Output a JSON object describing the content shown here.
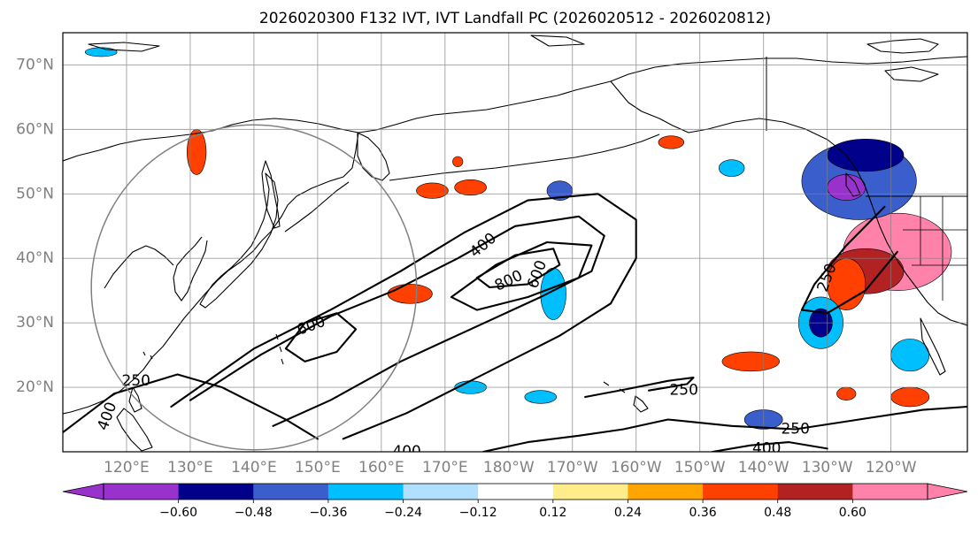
{
  "chart_data": {
    "type": "map",
    "title": "2026020300 F132 IVT, IVT Landfall PC (2026020512 - 2026020812)",
    "lon_range": [
      110,
      252
    ],
    "lat_range": [
      10,
      75
    ],
    "lat_ticks": [
      {
        "value": 20,
        "label": "20°N"
      },
      {
        "value": 30,
        "label": "30°N"
      },
      {
        "value": 40,
        "label": "40°N"
      },
      {
        "value": 50,
        "label": "50°N"
      },
      {
        "value": 60,
        "label": "60°N"
      },
      {
        "value": 70,
        "label": "70°N"
      }
    ],
    "lon_ticks": [
      {
        "value": 120,
        "label": "120°E"
      },
      {
        "value": 130,
        "label": "130°E"
      },
      {
        "value": 140,
        "label": "140°E"
      },
      {
        "value": 150,
        "label": "150°E"
      },
      {
        "value": 160,
        "label": "160°E"
      },
      {
        "value": 170,
        "label": "170°E"
      },
      {
        "value": 180,
        "label": "180°W"
      },
      {
        "value": 190,
        "label": "170°W"
      },
      {
        "value": 200,
        "label": "160°W"
      },
      {
        "value": 210,
        "label": "150°W"
      },
      {
        "value": 220,
        "label": "140°W"
      },
      {
        "value": 230,
        "label": "130°W"
      },
      {
        "value": 240,
        "label": "120°W"
      }
    ],
    "colorbar": {
      "levels": [
        -0.72,
        -0.6,
        -0.48,
        -0.36,
        -0.24,
        -0.12,
        0.12,
        0.24,
        0.36,
        0.48,
        0.6,
        0.72
      ],
      "tick_labels": [
        "−0.60",
        "−0.48",
        "−0.36",
        "−0.24",
        "−0.12",
        "0.12",
        "0.24",
        "0.36",
        "0.48",
        "0.60"
      ],
      "colors": [
        "#9932cc",
        "#00008b",
        "#3a5fcd",
        "#00bfff",
        "#b0e0fe",
        "#ffffff",
        "#ffec8b",
        "#ffa500",
        "#ff4000",
        "#b22222",
        "#ff82ab"
      ],
      "under_color": "#9932cc",
      "over_color": "#ff82ab"
    },
    "ivt_contours": {
      "levels": [
        250,
        400,
        600,
        800
      ],
      "labels": [
        {
          "text": "400",
          "lon": 176,
          "lat": 42,
          "angle": -40
        },
        {
          "text": "800",
          "lon": 180,
          "lat": 36.5,
          "angle": -25
        },
        {
          "text": "600",
          "lon": 184.5,
          "lat": 37.5,
          "angle": -70
        },
        {
          "text": "600",
          "lon": 149,
          "lat": 29.5,
          "angle": -20
        },
        {
          "text": "250",
          "lon": 121.5,
          "lat": 21,
          "angle": 0
        },
        {
          "text": "400",
          "lon": 117,
          "lat": 15.5,
          "angle": -70
        },
        {
          "text": "250",
          "lon": 207.5,
          "lat": 19.5,
          "angle": 0
        },
        {
          "text": "250",
          "lon": 230,
          "lat": 37,
          "angle": -70
        },
        {
          "text": "250",
          "lon": 225,
          "lat": 13.5,
          "angle": 0
        },
        {
          "text": "400",
          "lon": 220.5,
          "lat": 10.5,
          "angle": 0
        },
        {
          "text": "400",
          "lon": 164,
          "lat": 10,
          "angle": 0
        }
      ],
      "lines": [
        {
          "value": 250,
          "points": [
            [
              127,
              17
            ],
            [
              140,
              26
            ],
            [
              152,
              32
            ],
            [
              163,
              38
            ],
            [
              173,
              44
            ],
            [
              183,
              49
            ],
            [
              194,
              50
            ],
            [
              200,
              46
            ],
            [
              200,
              40
            ],
            [
              196,
              33
            ],
            [
              188,
              28
            ],
            [
              176,
              22
            ],
            [
              164,
              16
            ],
            [
              154,
              12
            ]
          ]
        },
        {
          "value": 400,
          "points": [
            [
              130,
              18
            ],
            [
              141,
              25
            ],
            [
              152,
              31
            ],
            [
              162,
              35
            ],
            [
              172,
              40
            ],
            [
              181,
              45
            ],
            [
              191,
              46.5
            ],
            [
              195,
              43.5
            ],
            [
              193,
              38
            ],
            [
              185,
              34
            ],
            [
              174,
              29
            ],
            [
              163,
              24
            ],
            [
              152,
              18
            ],
            [
              143,
              14
            ]
          ]
        },
        {
          "value": 600,
          "points": [
            [
              145,
              26
            ],
            [
              148,
              30
            ],
            [
              153,
              31.5
            ],
            [
              156,
              29
            ],
            [
              153,
              25.5
            ],
            [
              148,
              24
            ],
            [
              145,
              26
            ]
          ]
        },
        {
          "value": 600,
          "points": [
            [
              171,
              34
            ],
            [
              178,
              39
            ],
            [
              186,
              42.5
            ],
            [
              193,
              42
            ],
            [
              191,
              37
            ],
            [
              183,
              34
            ],
            [
              175,
              32
            ],
            [
              171,
              34
            ]
          ]
        },
        {
          "value": 800,
          "points": [
            [
              175,
              37
            ],
            [
              181,
              40.5
            ],
            [
              187,
              41.5
            ],
            [
              188,
              39
            ],
            [
              183,
              36
            ],
            [
              177,
              35.5
            ],
            [
              175,
              37
            ]
          ]
        },
        {
          "value": 250,
          "points": [
            [
              110,
              13
            ],
            [
              118,
              19
            ],
            [
              128,
              22
            ],
            [
              135,
              20
            ],
            [
              145,
              15
            ],
            [
              150,
              12
            ]
          ]
        },
        {
          "value": 250,
          "points": [
            [
              239,
              48
            ],
            [
              233,
              42
            ],
            [
              228,
              36
            ],
            [
              226,
              32
            ],
            [
              230,
              31.5
            ],
            [
              236,
              35
            ],
            [
              241,
              41
            ]
          ]
        },
        {
          "value": 250,
          "points": [
            [
              192,
              18.5
            ],
            [
              199,
              19.8
            ],
            [
              205,
              21
            ],
            [
              209,
              21.5
            ],
            [
              208,
              20.5
            ],
            [
              202,
              19.5
            ]
          ]
        },
        {
          "value": 250,
          "points": [
            [
              176,
              10
            ],
            [
              183,
              11.5
            ],
            [
              191,
              12.5
            ],
            [
              198,
              13.5
            ],
            [
              205,
              15
            ],
            [
              215,
              14
            ],
            [
              225,
              13.5
            ],
            [
              235,
              15
            ],
            [
              245,
              16.5
            ],
            [
              252,
              17
            ]
          ]
        },
        {
          "value": 400,
          "points": [
            [
              212,
              10
            ],
            [
              218,
              11
            ],
            [
              224,
              11.5
            ],
            [
              230,
              10.5
            ]
          ]
        }
      ]
    },
    "landfall_circle": {
      "center_lon": 140,
      "center_lat": 35.5,
      "radius_lat": 25.2
    },
    "pc_patches": [
      {
        "color": "#ff82ab",
        "lon": 241,
        "lat": 41,
        "rx": 8.5,
        "ry": 6
      },
      {
        "color": "#b22222",
        "lon": 236,
        "lat": 38,
        "rx": 6,
        "ry": 3.5
      },
      {
        "color": "#ff4000",
        "lon": 233,
        "lat": 36,
        "rx": 3,
        "ry": 4
      },
      {
        "color": "#3a5fcd",
        "lon": 235,
        "lat": 52,
        "rx": 9,
        "ry": 6
      },
      {
        "color": "#00008b",
        "lon": 236,
        "lat": 56,
        "rx": 6,
        "ry": 2.5
      },
      {
        "color": "#9932cc",
        "lon": 233,
        "lat": 51,
        "rx": 3,
        "ry": 2
      },
      {
        "color": "#00bfff",
        "lon": 229,
        "lat": 30,
        "rx": 3.5,
        "ry": 4
      },
      {
        "color": "#00008b",
        "lon": 229,
        "lat": 30,
        "rx": 1.8,
        "ry": 2.2
      },
      {
        "color": "#00bfff",
        "lon": 243,
        "lat": 25,
        "rx": 3,
        "ry": 2.5
      },
      {
        "color": "#3a5fcd",
        "lon": 220,
        "lat": 15,
        "rx": 3,
        "ry": 1.5
      },
      {
        "color": "#ff4000",
        "lon": 218,
        "lat": 24,
        "rx": 4.5,
        "ry": 1.5
      },
      {
        "color": "#ff4000",
        "lon": 243,
        "lat": 18.5,
        "rx": 3,
        "ry": 1.5
      },
      {
        "color": "#ff4000",
        "lon": 233,
        "lat": 19,
        "rx": 1.5,
        "ry": 1
      },
      {
        "color": "#ff4000",
        "lon": 164.5,
        "lat": 34.5,
        "rx": 3.5,
        "ry": 1.5
      },
      {
        "color": "#ff4000",
        "lon": 168,
        "lat": 50.5,
        "rx": 2.5,
        "ry": 1.2
      },
      {
        "color": "#ff4000",
        "lon": 174,
        "lat": 51,
        "rx": 2.5,
        "ry": 1.2
      },
      {
        "color": "#ff4000",
        "lon": 131,
        "lat": 56.5,
        "rx": 1.5,
        "ry": 3.5
      },
      {
        "color": "#ff4000",
        "lon": 172,
        "lat": 55,
        "rx": 0.8,
        "ry": 0.8
      },
      {
        "color": "#00bfff",
        "lon": 187,
        "lat": 34.5,
        "rx": 2,
        "ry": 4
      },
      {
        "color": "#3a5fcd",
        "lon": 188,
        "lat": 50.5,
        "rx": 2,
        "ry": 1.5
      },
      {
        "color": "#ff4000",
        "lon": 205.5,
        "lat": 58,
        "rx": 2,
        "ry": 1
      },
      {
        "color": "#00bfff",
        "lon": 215,
        "lat": 54,
        "rx": 2,
        "ry": 1.3
      },
      {
        "color": "#00bfff",
        "lon": 185,
        "lat": 18.5,
        "rx": 2.5,
        "ry": 1
      },
      {
        "color": "#00bfff",
        "lon": 174,
        "lat": 20,
        "rx": 2.5,
        "ry": 1
      },
      {
        "color": "#00bfff",
        "lon": 116,
        "lat": 72,
        "rx": 2.5,
        "ry": 0.7
      }
    ]
  }
}
